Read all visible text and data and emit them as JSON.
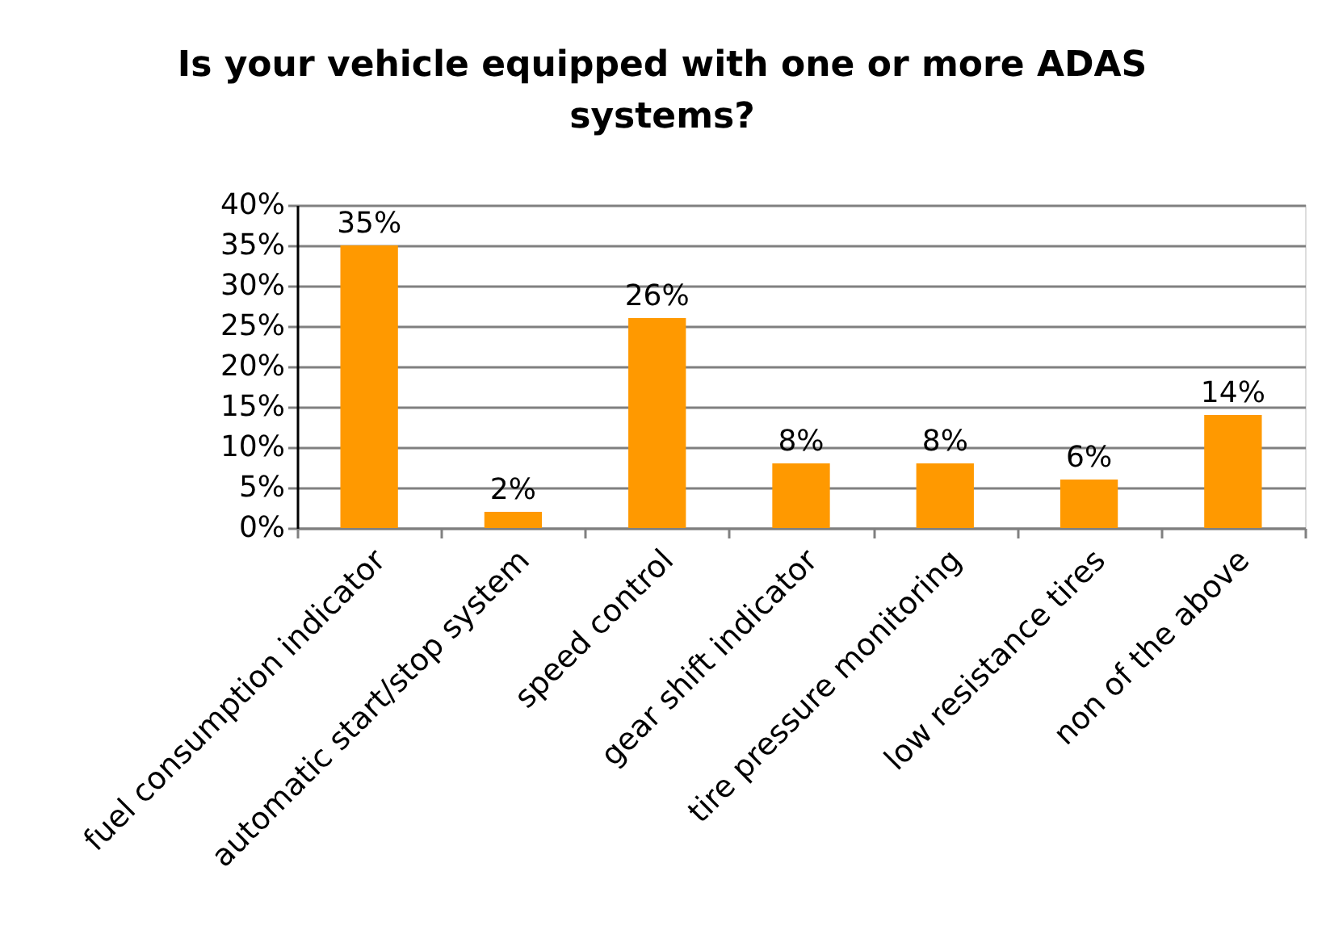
{
  "chart_data": {
    "type": "bar",
    "title": "Is your vehicle equipped with one or more ADAS systems?",
    "categories": [
      "fuel consumption indicator",
      "automatic start/stop system",
      "speed control",
      "gear shift indicator",
      "tire pressure monitoring",
      "low resistance tires",
      "non of the above"
    ],
    "values": [
      35,
      2,
      26,
      8,
      8,
      6,
      14
    ],
    "value_labels": [
      "35%",
      "2%",
      "26%",
      "8%",
      "8%",
      "6%",
      "14%"
    ],
    "color": "#ff9900",
    "ylim": [
      0,
      40
    ],
    "yticks": [
      {
        "value": 0,
        "label": "0%"
      },
      {
        "value": 5,
        "label": "5%"
      },
      {
        "value": 10,
        "label": "10%"
      },
      {
        "value": 15,
        "label": "15%"
      },
      {
        "value": 20,
        "label": "20%"
      },
      {
        "value": 25,
        "label": "25%"
      },
      {
        "value": 30,
        "label": "30%"
      },
      {
        "value": 35,
        "label": "35%"
      },
      {
        "value": 40,
        "label": "40%"
      }
    ],
    "grid": "y"
  }
}
